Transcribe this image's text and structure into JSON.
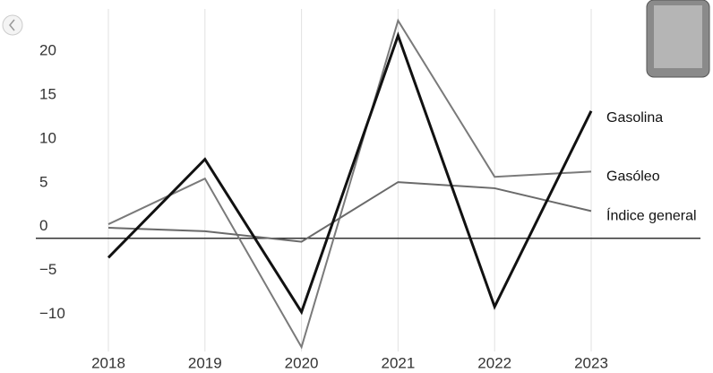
{
  "chart_data": {
    "type": "line",
    "categories": [
      "2018",
      "2019",
      "2020",
      "2021",
      "2022",
      "2023"
    ],
    "series": [
      {
        "name": "Gasolina",
        "color": "#111111",
        "values": [
          -2.2,
          9.0,
          -8.4,
          23.1,
          -7.8,
          14.5
        ]
      },
      {
        "name": "Gasóleo",
        "color": "#7a7a7a",
        "values": [
          1.6,
          6.8,
          -12.4,
          24.8,
          7.0,
          7.6
        ]
      },
      {
        "name": "Índice general",
        "color": "#6a6a6a",
        "values": [
          1.2,
          0.8,
          -0.4,
          6.4,
          5.7,
          3.1
        ]
      }
    ],
    "ylim": [
      -13,
      25
    ],
    "yticks": [
      20,
      15,
      10,
      5,
      0,
      {
        "value": -5,
        "label": "−5"
      },
      {
        "value": -10,
        "label": "−10"
      }
    ],
    "grid": true
  }
}
